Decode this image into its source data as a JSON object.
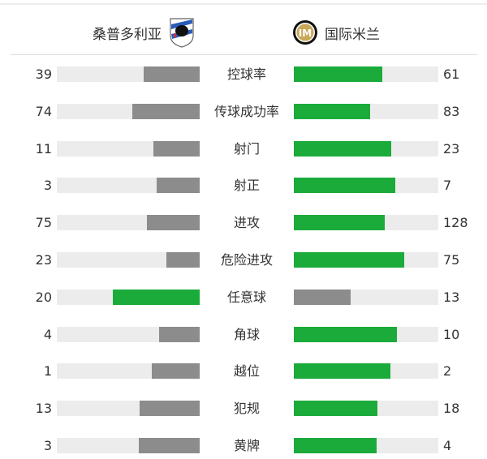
{
  "header": {
    "home": "桑普多利亚",
    "away": "国际米兰"
  },
  "colors": {
    "higher": "#1aab3a",
    "lower": "#8c8c8c",
    "track": "#ececec"
  },
  "stats": [
    {
      "label": "控球率",
      "home": 39,
      "away": 61
    },
    {
      "label": "传球成功率",
      "home": 74,
      "away": 83
    },
    {
      "label": "射门",
      "home": 11,
      "away": 23
    },
    {
      "label": "射正",
      "home": 3,
      "away": 7
    },
    {
      "label": "进攻",
      "home": 75,
      "away": 128
    },
    {
      "label": "危险进攻",
      "home": 23,
      "away": 75
    },
    {
      "label": "任意球",
      "home": 20,
      "away": 13
    },
    {
      "label": "角球",
      "home": 4,
      "away": 10
    },
    {
      "label": "越位",
      "home": 1,
      "away": 2
    },
    {
      "label": "犯规",
      "home": 13,
      "away": 18
    },
    {
      "label": "黄牌",
      "home": 3,
      "away": 4
    }
  ]
}
